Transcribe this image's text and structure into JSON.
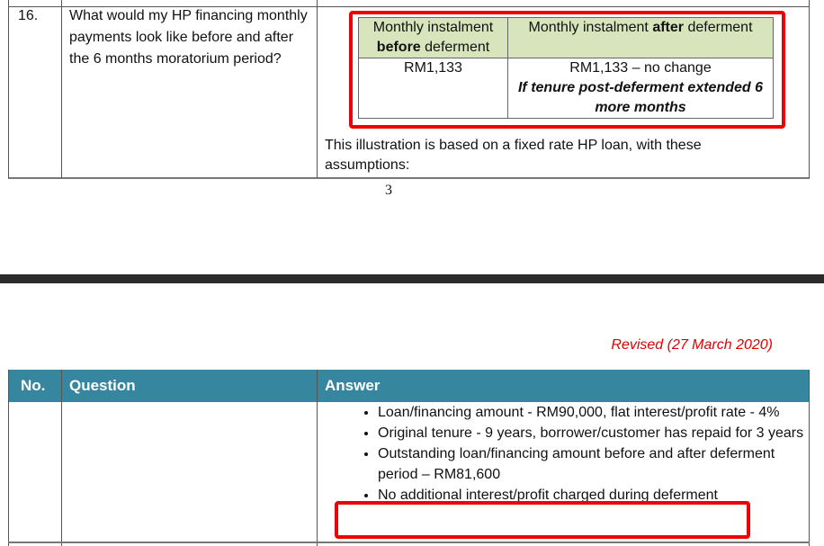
{
  "page1": {
    "row_number": "16.",
    "question": "What would my HP financing monthly payments look like before and after the 6 months moratorium period?",
    "table": {
      "header_before_prefix": "Monthly instalment",
      "header_before_bold": "before",
      "header_before_suffix": "deferment",
      "header_after_prefix": "Monthly instalment",
      "header_after_bold": "after",
      "header_after_suffix": "deferment",
      "value_before": "RM1,133",
      "value_after": "RM1,133 – no change",
      "value_after_note": "If tenure post-deferment extended 6 more months"
    },
    "illustration_text": "This illustration is based on a fixed rate HP loan, with these assumptions:",
    "page_number": "3"
  },
  "page2": {
    "revised": "Revised (27 March 2020)",
    "headers": {
      "no": "No.",
      "question": "Question",
      "answer": "Answer"
    },
    "bullets": [
      "Loan/financing amount - RM90,000, flat interest/profit rate - 4%",
      "Original tenure - 9 years, borrower/customer has repaid for 3 years",
      "Outstanding loan/financing amount before and after deferment period – RM81,600",
      "No additional interest/profit charged during deferment"
    ]
  },
  "colors": {
    "header_bg": "#35869e",
    "highlight": "#ee0000",
    "table_header_bg": "#d8e4bc",
    "revised_text": "#e00000"
  }
}
